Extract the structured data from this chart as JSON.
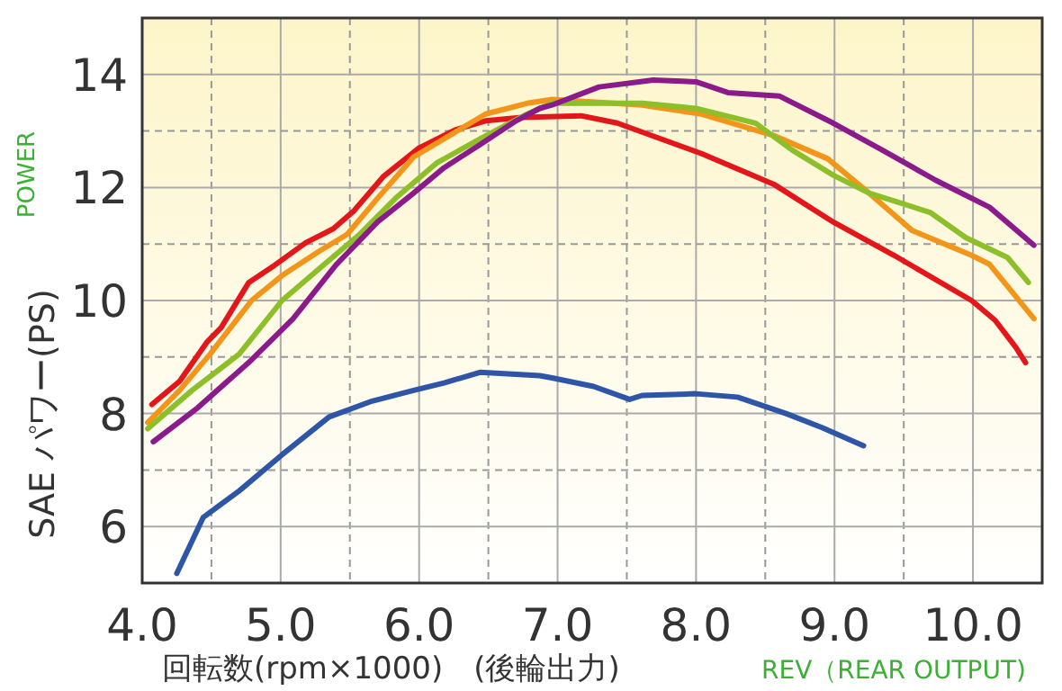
{
  "chart_data": {
    "type": "line",
    "xlabel": "回転数(rpm×1000)　(後輪出力)",
    "ylabel": "SAE パワー(PS)",
    "annotations": [
      "POWER",
      "REV（REAR OUTPUT)"
    ],
    "xlim": [
      4,
      10.5
    ],
    "ylim": [
      5,
      15
    ],
    "xticks": [
      {
        "value": 4,
        "label": "4.0"
      },
      {
        "value": 4.5,
        "label": null
      },
      {
        "value": 5,
        "label": "5.0"
      },
      {
        "value": 5.5,
        "label": null
      },
      {
        "value": 6,
        "label": "6.0"
      },
      {
        "value": 6.5,
        "label": null
      },
      {
        "value": 7,
        "label": "7.0"
      },
      {
        "value": 7.5,
        "label": null
      },
      {
        "value": 8,
        "label": "8.0"
      },
      {
        "value": 8.5,
        "label": null
      },
      {
        "value": 9,
        "label": "9.0"
      },
      {
        "value": 9.5,
        "label": null
      },
      {
        "value": 10,
        "label": "10.0"
      }
    ],
    "yticks": [
      6,
      {
        "value": 7,
        "label": null
      },
      8,
      {
        "value": 9,
        "label": null
      },
      10,
      {
        "value": 11,
        "label": null
      },
      12,
      {
        "value": 13,
        "label": null
      },
      14
    ],
    "grid": true,
    "marker": "none",
    "line_style": "solid",
    "series": [
      {
        "color": "#e3161b",
        "x": [
          4.07,
          4.27,
          4.47,
          4.57,
          4.77,
          4.96,
          5.18,
          5.38,
          5.53,
          5.74,
          6.0,
          6.26,
          6.48,
          6.74,
          7.17,
          7.43,
          8.04,
          8.56,
          8.99,
          9.43,
          9.99,
          10.16,
          10.31,
          10.38
        ],
        "values": [
          8.16,
          8.57,
          9.27,
          9.52,
          10.32,
          10.63,
          11.02,
          11.27,
          11.59,
          12.19,
          12.7,
          13.02,
          13.18,
          13.24,
          13.27,
          13.14,
          12.6,
          12.06,
          11.39,
          10.8,
          10.0,
          9.65,
          9.17,
          8.9
        ]
      },
      {
        "color": "#f39519",
        "x": [
          4.04,
          4.27,
          4.49,
          4.79,
          5.01,
          5.27,
          5.48,
          5.7,
          5.96,
          6.22,
          6.48,
          6.78,
          6.96,
          7.61,
          8.04,
          8.56,
          8.95,
          9.25,
          9.56,
          9.99,
          10.12,
          10.44
        ],
        "values": [
          7.84,
          8.41,
          9.05,
          10.0,
          10.44,
          10.86,
          11.17,
          11.81,
          12.54,
          12.92,
          13.3,
          13.49,
          13.56,
          13.46,
          13.3,
          12.92,
          12.51,
          11.9,
          11.24,
          10.8,
          10.64,
          9.68
        ]
      },
      {
        "color": "#8cbf2a",
        "x": [
          4.04,
          4.36,
          4.7,
          5.01,
          5.31,
          5.57,
          5.83,
          6.13,
          6.44,
          6.78,
          6.96,
          7.61,
          8.0,
          8.43,
          8.69,
          8.99,
          9.25,
          9.69,
          9.95,
          10.25,
          10.4
        ],
        "values": [
          7.73,
          8.41,
          9.05,
          10.0,
          10.63,
          11.17,
          11.81,
          12.44,
          12.86,
          13.3,
          13.49,
          13.49,
          13.4,
          13.14,
          12.67,
          12.22,
          11.9,
          11.56,
          11.11,
          10.76,
          10.32
        ]
      },
      {
        "color": "#8b1a8b",
        "x": [
          4.08,
          4.4,
          4.79,
          5.09,
          5.4,
          5.7,
          5.96,
          6.18,
          6.44,
          6.7,
          6.87,
          6.96,
          7.3,
          7.69,
          8.0,
          8.23,
          8.6,
          8.99,
          9.34,
          9.73,
          10.12,
          10.44
        ],
        "values": [
          7.5,
          8.1,
          8.95,
          9.68,
          10.63,
          11.39,
          11.9,
          12.35,
          12.76,
          13.18,
          13.4,
          13.46,
          13.78,
          13.9,
          13.87,
          13.68,
          13.62,
          13.14,
          12.67,
          12.13,
          11.65,
          10.98
        ]
      },
      {
        "color": "#2f56a6",
        "x": [
          4.25,
          4.44,
          4.7,
          5.01,
          5.35,
          5.66,
          5.96,
          6.18,
          6.44,
          6.87,
          6.96,
          7.26,
          7.52,
          7.61,
          8.0,
          8.3,
          8.65,
          8.91,
          9.21
        ],
        "values": [
          5.17,
          6.16,
          6.63,
          7.27,
          7.94,
          8.22,
          8.41,
          8.54,
          8.73,
          8.67,
          8.63,
          8.48,
          8.25,
          8.32,
          8.35,
          8.29,
          8.0,
          7.75,
          7.43
        ]
      }
    ]
  }
}
